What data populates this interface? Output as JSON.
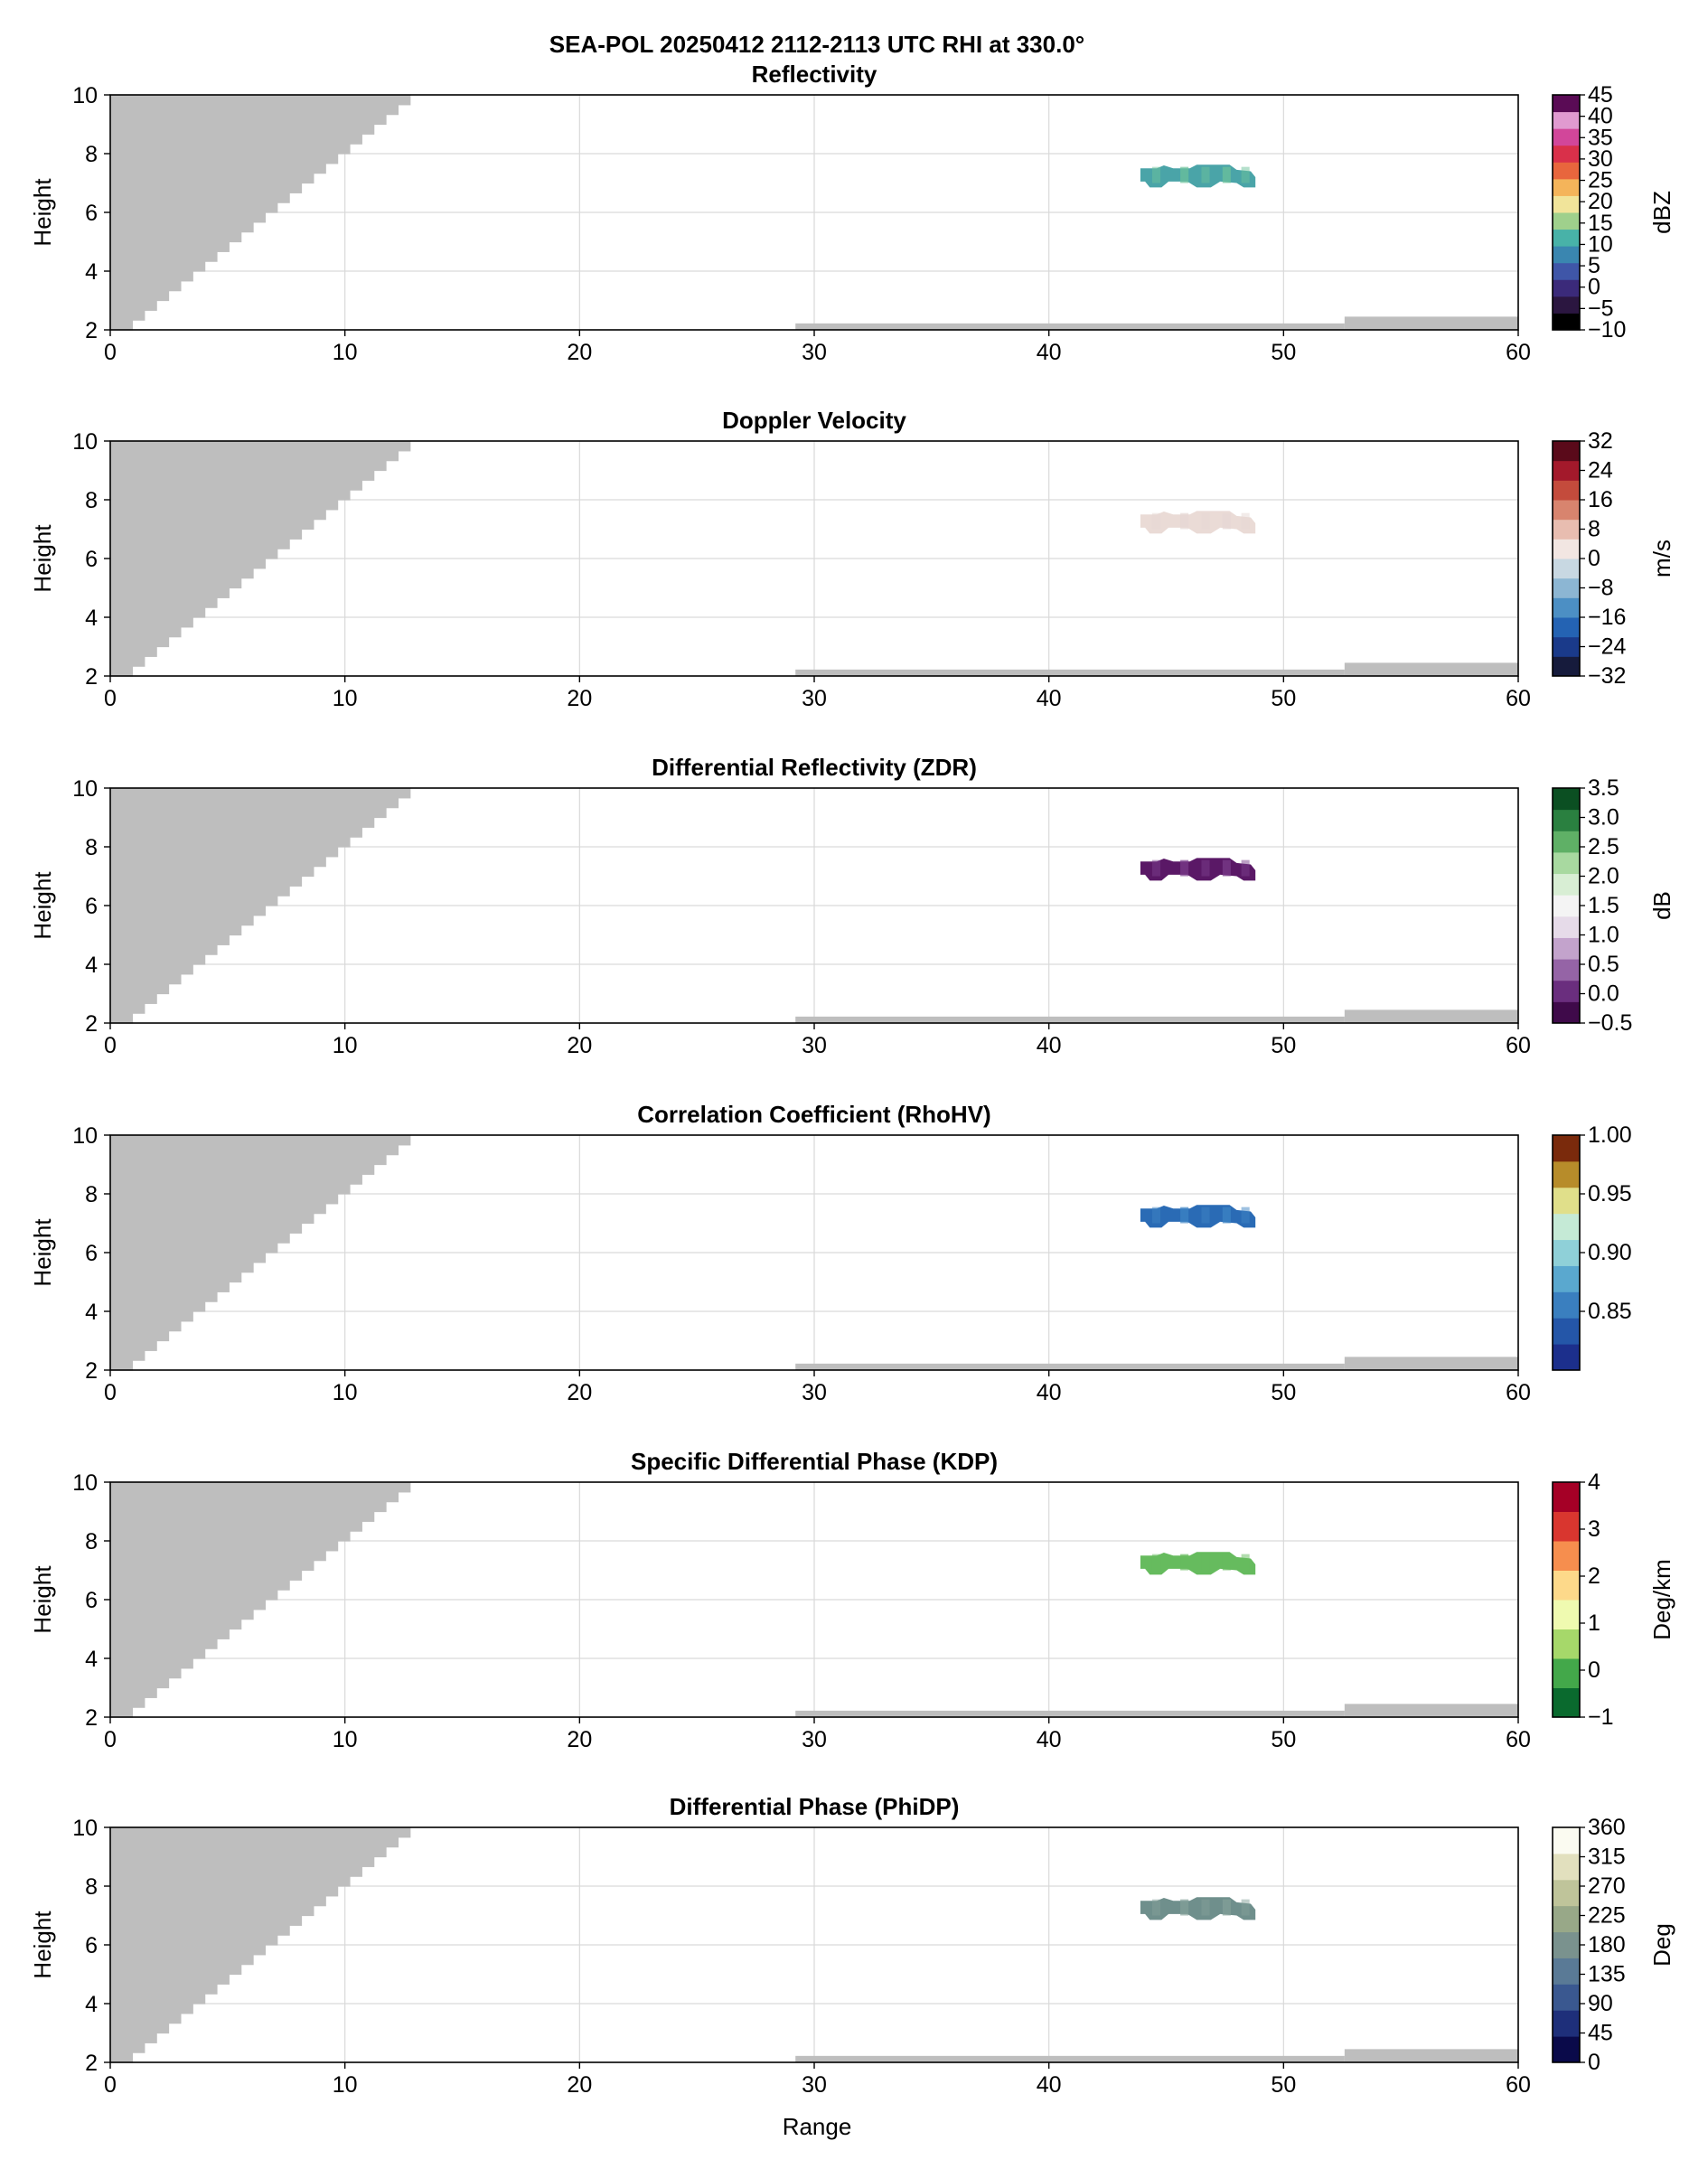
{
  "figure": {
    "title_line1": "SEA-POL 20250412 2112-2113 UTC RHI at 330.0°",
    "xlabel": "Range"
  },
  "chart_data": [
    {
      "type": "heatmap",
      "title": "Reflectivity",
      "xlabel": "",
      "ylabel": "Height",
      "xlim": [
        0,
        60
      ],
      "ylim": [
        2,
        10
      ],
      "xticks": [
        0,
        10,
        20,
        30,
        40,
        50,
        60
      ],
      "yticks": [
        2,
        4,
        6,
        8,
        10
      ],
      "grid": true,
      "colorbar": {
        "label": "dBZ",
        "range": [
          -10,
          45
        ],
        "ticks": [
          "−10",
          "−5",
          "0",
          "5",
          "10",
          "15",
          "20",
          "25",
          "30",
          "35",
          "40",
          "45"
        ],
        "tick_values": [
          -10,
          -5,
          0,
          5,
          10,
          15,
          20,
          25,
          30,
          35,
          40,
          45
        ],
        "colors": [
          "#000000",
          "#2b1640",
          "#3b2a7a",
          "#3f56a8",
          "#3a86b0",
          "#48b2a8",
          "#9fd08c",
          "#f1e49a",
          "#f4b45a",
          "#e8663d",
          "#d9304a",
          "#d2469a",
          "#e09ad0",
          "#5a0b55"
        ]
      },
      "echo_color": "#4aa4a8",
      "echo_accent": "#6cc29a"
    },
    {
      "type": "heatmap",
      "title": "Doppler Velocity",
      "xlabel": "",
      "ylabel": "Height",
      "xlim": [
        0,
        60
      ],
      "ylim": [
        2,
        10
      ],
      "xticks": [
        0,
        10,
        20,
        30,
        40,
        50,
        60
      ],
      "yticks": [
        2,
        4,
        6,
        8,
        10
      ],
      "grid": true,
      "colorbar": {
        "label": "m/s",
        "range": [
          -32,
          32
        ],
        "ticks": [
          "−32",
          "−24",
          "−16",
          "−8",
          "0",
          "8",
          "16",
          "24",
          "32"
        ],
        "tick_values": [
          -32,
          -24,
          -16,
          -8,
          0,
          8,
          16,
          24,
          32
        ],
        "colors": [
          "#161b3c",
          "#1a3a8a",
          "#2463b3",
          "#4c8fc4",
          "#8cb6d3",
          "#c8d8e2",
          "#f2e6e2",
          "#e8bdb0",
          "#d8846e",
          "#c44b3c",
          "#a3192b",
          "#5a0a1a"
        ]
      },
      "echo_color": "#eadbd6",
      "echo_accent": "#e6d7d4"
    },
    {
      "type": "heatmap",
      "title": "Differential Reflectivity (ZDR)",
      "xlabel": "",
      "ylabel": "Height",
      "xlim": [
        0,
        60
      ],
      "ylim": [
        2,
        10
      ],
      "xticks": [
        0,
        10,
        20,
        30,
        40,
        50,
        60
      ],
      "yticks": [
        2,
        4,
        6,
        8,
        10
      ],
      "grid": true,
      "colorbar": {
        "label": "dB",
        "range": [
          -0.5,
          3.5
        ],
        "ticks": [
          "−0.5",
          "0.0",
          "0.5",
          "1.0",
          "1.5",
          "2.0",
          "2.5",
          "3.0",
          "3.5"
        ],
        "tick_values": [
          -0.5,
          0.0,
          0.5,
          1.0,
          1.5,
          2.0,
          2.5,
          3.0,
          3.5
        ],
        "colors": [
          "#3f0a4a",
          "#6a2e7e",
          "#9564a6",
          "#c3a3cc",
          "#e6dbe9",
          "#f4f4f4",
          "#d8eed4",
          "#a8d9a0",
          "#5fb066",
          "#2a8040",
          "#0b4f22"
        ]
      },
      "echo_color": "#5a1866",
      "echo_accent": "#7a3d8c"
    },
    {
      "type": "heatmap",
      "title": "Correlation Coefficient (RhoHV)",
      "xlabel": "",
      "ylabel": "Height",
      "xlim": [
        0,
        60
      ],
      "ylim": [
        2,
        10
      ],
      "xticks": [
        0,
        10,
        20,
        30,
        40,
        50,
        60
      ],
      "yticks": [
        2,
        4,
        6,
        8,
        10
      ],
      "grid": true,
      "colorbar": {
        "label": "",
        "range": [
          0.8,
          1.0
        ],
        "ticks": [
          "0.85",
          "0.90",
          "0.95",
          "1.00"
        ],
        "tick_values": [
          0.85,
          0.9,
          0.95,
          1.0
        ],
        "colors": [
          "#1c2f8c",
          "#2456a8",
          "#3a7fbf",
          "#5aa8cf",
          "#8fd0d8",
          "#c5ead6",
          "#e0df8a",
          "#b78c2a",
          "#7a2a0c"
        ]
      },
      "echo_color": "#2a6bb5",
      "echo_accent": "#3d84c4"
    },
    {
      "type": "heatmap",
      "title": "Specific Differential Phase (KDP)",
      "xlabel": "",
      "ylabel": "Height",
      "xlim": [
        0,
        60
      ],
      "ylim": [
        2,
        10
      ],
      "xticks": [
        0,
        10,
        20,
        30,
        40,
        50,
        60
      ],
      "yticks": [
        2,
        4,
        6,
        8,
        10
      ],
      "grid": true,
      "colorbar": {
        "label": "Deg/km",
        "range": [
          -1,
          4
        ],
        "ticks": [
          "−1",
          "0",
          "1",
          "2",
          "3",
          "4"
        ],
        "tick_values": [
          -1,
          0,
          1,
          2,
          3,
          4
        ],
        "colors": [
          "#0a6a2e",
          "#43a84a",
          "#a6d86a",
          "#effab0",
          "#fdd98a",
          "#f68e4e",
          "#d9362f",
          "#a50026"
        ]
      },
      "echo_color": "#66bb5e",
      "echo_accent": "#66bb5e"
    },
    {
      "type": "heatmap",
      "title": "Differential Phase (PhiDP)",
      "xlabel": "Range",
      "ylabel": "Height",
      "xlim": [
        0,
        60
      ],
      "ylim": [
        2,
        10
      ],
      "xticks": [
        0,
        10,
        20,
        30,
        40,
        50,
        60
      ],
      "yticks": [
        2,
        4,
        6,
        8,
        10
      ],
      "grid": true,
      "colorbar": {
        "label": "Deg",
        "range": [
          0,
          360
        ],
        "ticks": [
          "0",
          "45",
          "90",
          "135",
          "180",
          "225",
          "270",
          "315",
          "360"
        ],
        "tick_values": [
          0,
          45,
          90,
          135,
          180,
          225,
          270,
          315,
          360
        ],
        "colors": [
          "#0a0a4a",
          "#1e2f7a",
          "#3a5890",
          "#5a7a96",
          "#7a928e",
          "#98a888",
          "#bfc49a",
          "#e2e0be",
          "#fbfbf1"
        ]
      },
      "echo_color": "#6f8f8c",
      "echo_accent": "#839f98"
    }
  ]
}
